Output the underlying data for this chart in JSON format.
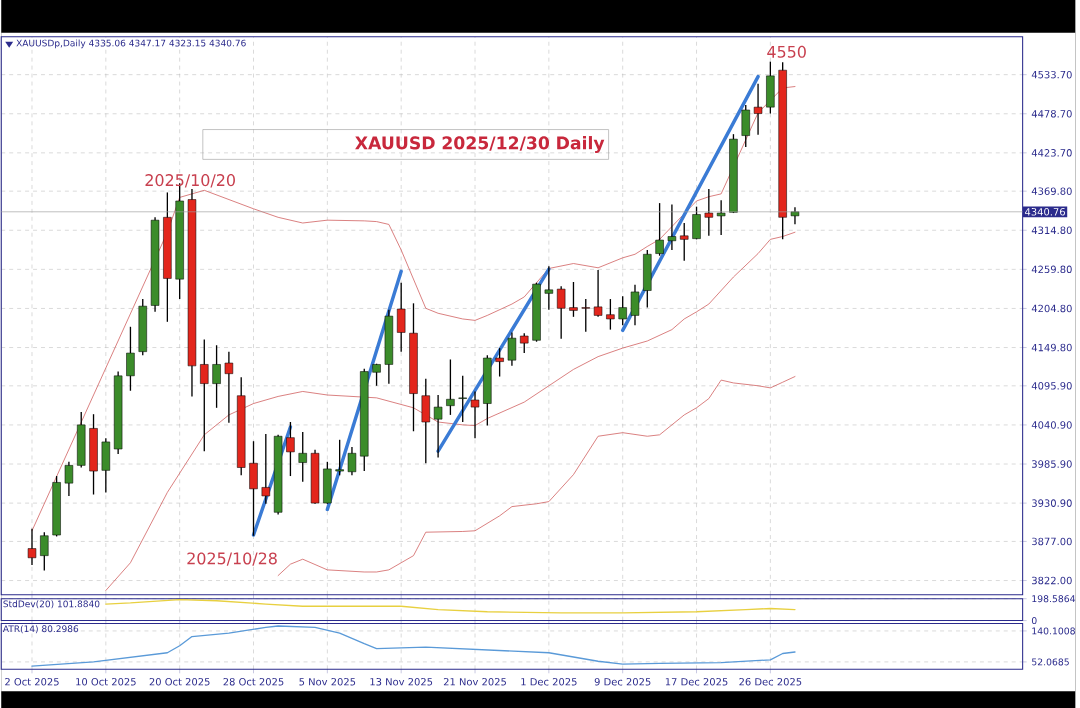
{
  "chart_data": [
    {
      "type": "candlestick",
      "title": "XAUUSD 2025/12/30 Daily",
      "subtitle": "XAUUSDp,Daily 4335.06 4347.17 4323.15 4340.76",
      "categories": [
        null,
        null,
        null,
        null,
        null,
        null,
        null,
        null,
        null,
        null,
        null,
        null,
        null,
        null,
        null,
        null,
        null,
        null,
        null,
        null,
        null,
        null,
        null,
        null,
        null,
        null,
        null,
        null,
        null,
        null,
        null,
        null,
        null,
        null,
        null,
        null,
        null,
        null,
        null,
        null,
        null,
        null,
        null,
        null,
        null,
        null,
        null,
        null,
        null,
        null,
        null,
        null,
        null,
        null,
        null,
        null,
        null,
        null,
        null,
        null,
        null,
        null,
        null
      ],
      "ohlc": [
        [
          3867,
          3895,
          3844,
          3854
        ],
        [
          3857,
          3890,
          3836,
          3885
        ],
        [
          3886,
          3969,
          3884,
          3960
        ],
        [
          3959,
          3989,
          3941,
          3984
        ],
        [
          3984,
          4059,
          3981,
          4041
        ],
        [
          4036,
          4056,
          3943,
          3976
        ],
        [
          3977,
          4022,
          3946,
          4017
        ],
        [
          4007,
          4116,
          4000,
          4110
        ],
        [
          4110,
          4179,
          4089,
          4142
        ],
        [
          4144,
          4218,
          4139,
          4208
        ],
        [
          4209,
          4333,
          4200,
          4329
        ],
        [
          4333,
          4368,
          4186,
          4247
        ],
        [
          4246,
          4381,
          4218,
          4356
        ],
        [
          4358,
          4373,
          4081,
          4124
        ],
        [
          4126,
          4161,
          4004,
          4099
        ],
        [
          4099,
          4153,
          4065,
          4126
        ],
        [
          4128,
          4144,
          4044,
          4113
        ],
        [
          4082,
          4108,
          3970,
          3981
        ],
        [
          3987,
          4018,
          3885,
          3951
        ],
        [
          3953,
          4028,
          3930,
          3941
        ],
        [
          3918,
          4027,
          3915,
          4025
        ],
        [
          4023,
          4045,
          3969,
          4003
        ],
        [
          3988,
          4031,
          3961,
          4001
        ],
        [
          4001,
          4006,
          3930,
          3931
        ],
        [
          3931,
          3989,
          3930,
          3979
        ],
        [
          3976,
          4020,
          3970,
          3978
        ],
        [
          3975,
          4010,
          3970,
          4001
        ],
        [
          3997,
          4120,
          3976,
          4116
        ],
        [
          4115,
          4127,
          4096,
          4126
        ],
        [
          4126,
          4203,
          4099,
          4194
        ],
        [
          4204,
          4241,
          4144,
          4171
        ],
        [
          4170,
          4212,
          4032,
          4085
        ],
        [
          4082,
          4106,
          3987,
          4045
        ],
        [
          4049,
          4083,
          3995,
          4066
        ],
        [
          4068,
          4133,
          4055,
          4077
        ],
        [
          4078,
          4110,
          4045,
          4079
        ],
        [
          4076,
          4088,
          4022,
          4066
        ],
        [
          4071,
          4139,
          4040,
          4135
        ],
        [
          4135,
          4149,
          4109,
          4130
        ],
        [
          4132,
          4171,
          4124,
          4163
        ],
        [
          4166,
          4170,
          4142,
          4156
        ],
        [
          4160,
          4241,
          4158,
          4239
        ],
        [
          4226,
          4264,
          4203,
          4231
        ],
        [
          4232,
          4236,
          4162,
          4205
        ],
        [
          4206,
          4242,
          4193,
          4202
        ],
        [
          4206,
          4218,
          4172,
          4205
        ],
        [
          4207,
          4259,
          4193,
          4195
        ],
        [
          4196,
          4218,
          4175,
          4190
        ],
        [
          4190,
          4222,
          4181,
          4206
        ],
        [
          4195,
          4238,
          4181,
          4228
        ],
        [
          4230,
          4287,
          4206,
          4281
        ],
        [
          4282,
          4353,
          4279,
          4301
        ],
        [
          4300,
          4351,
          4287,
          4306
        ],
        [
          4307,
          4325,
          4272,
          4302
        ],
        [
          4303,
          4348,
          4302,
          4337
        ],
        [
          4339,
          4373,
          4307,
          4333
        ],
        [
          4335,
          4357,
          4308,
          4339
        ],
        [
          4340,
          4450,
          4339,
          4443
        ],
        [
          4448,
          4491,
          4432,
          4484
        ],
        [
          4488,
          4521,
          4449,
          4479
        ],
        [
          4488,
          4552,
          4479,
          4532
        ],
        [
          4540,
          4551,
          4302,
          4333
        ],
        [
          4335.06,
          4347.17,
          4323.15,
          4340.76
        ]
      ],
      "colors": [
        "#e3261c",
        "#3b8c2a",
        "#3b8c2a",
        "#3b8c2a",
        "#3b8c2a",
        "#e3261c",
        "#3b8c2a",
        "#3b8c2a",
        "#3b8c2a",
        "#3b8c2a",
        "#3b8c2a",
        "#e3261c",
        "#3b8c2a",
        "#e3261c",
        "#e3261c",
        "#3b8c2a",
        "#e3261c",
        "#e3261c",
        "#e3261c",
        "#e3261c",
        "#3b8c2a",
        "#e3261c",
        "#3b8c2a",
        "#e3261c",
        "#3b8c2a",
        "#3b8c2a",
        "#3b8c2a",
        "#3b8c2a",
        "#3b8c2a",
        "#3b8c2a",
        "#e3261c",
        "#e3261c",
        "#e3261c",
        "#3b8c2a",
        "#3b8c2a",
        "#3b8c2a",
        "#e3261c",
        "#3b8c2a",
        "#e3261c",
        "#3b8c2a",
        "#e3261c",
        "#3b8c2a",
        "#3b8c2a",
        "#e3261c",
        "#e3261c",
        "#e3261c",
        "#e3261c",
        "#e3261c",
        "#3b8c2a",
        "#3b8c2a",
        "#3b8c2a",
        "#3b8c2a",
        "#3b8c2a",
        "#e3261c",
        "#3b8c2a",
        "#e3261c",
        "#3b8c2a",
        "#3b8c2a",
        "#3b8c2a",
        "#e3261c",
        "#3b8c2a",
        "#e3261c",
        "#3b8c2a"
      ],
      "ylim": [
        3802,
        4587
      ],
      "yticks": [
        {
          "value": 3822,
          "label": "3822.00"
        },
        {
          "value": 3877,
          "label": "3877.00"
        },
        {
          "value": 3930.9,
          "label": "3930.90"
        },
        {
          "value": 3985.9,
          "label": "3985.90"
        },
        {
          "value": 4040.9,
          "label": "4040.90"
        },
        {
          "value": 4095.9,
          "label": "4095.90"
        },
        {
          "value": 4149.8,
          "label": "4149.80"
        },
        {
          "value": 4204.8,
          "label": "4204.80"
        },
        {
          "value": 4259.8,
          "label": "4259.80"
        },
        {
          "value": 4314.8,
          "label": "4314.80"
        },
        {
          "value": 4369.8,
          "label": "4369.80"
        },
        {
          "value": 4423.7,
          "label": "4423.70"
        },
        {
          "value": 4478.7,
          "label": "4478.70"
        },
        {
          "value": 4533.7,
          "label": "4533.70"
        }
      ],
      "grid": true,
      "tick_labels": "y",
      "series": [
        {
          "type": "line",
          "color": "#d06060",
          "values": [
            3892,
            null,
            null,
            null,
            null,
            null,
            null,
            null,
            null,
            null,
            null,
            4312,
            4361,
            null,
            4371,
            null,
            4358,
            null,
            4345,
            null,
            4333,
            null,
            4325,
            null,
            4329,
            null,
            null,
            4328,
            4327,
            4323,
            4287,
            4246,
            4205,
            4198,
            null,
            4190,
            4188,
            4195,
            null,
            4211,
            4221,
            4241,
            4261,
            null,
            4268,
            null,
            4262,
            null,
            4276,
            4281,
            4292,
            4302,
            null,
            null,
            4356,
            4362,
            4366,
            null,
            null,
            4480,
            null,
            4515,
            4517
          ]
        },
        {
          "type": "line",
          "color": "#d06060",
          "values": [
            null,
            null,
            null,
            null,
            null,
            null,
            3808,
            null,
            3847,
            null,
            null,
            3946,
            null,
            null,
            4027,
            null,
            4055,
            null,
            4071,
            null,
            4081,
            null,
            4088,
            null,
            4083,
            null,
            null,
            null,
            4079,
            null,
            null,
            4065,
            null,
            4045,
            null,
            4041,
            4040,
            4050,
            null,
            null,
            4073,
            null,
            4096,
            null,
            4119,
            null,
            4137,
            null,
            4149,
            null,
            4159,
            null,
            4175,
            4190,
            4200,
            4211,
            null,
            4249,
            null,
            4282,
            4302,
            4306,
            4312
          ]
        },
        {
          "type": "line",
          "color": "#d06060",
          "values": [
            null,
            null,
            null,
            null,
            null,
            null,
            null,
            null,
            null,
            null,
            null,
            null,
            null,
            null,
            null,
            null,
            null,
            null,
            null,
            null,
            3829,
            3845,
            3852,
            null,
            3837,
            null,
            null,
            3834,
            3834,
            3837,
            3847,
            3857,
            3890,
            null,
            null,
            3891,
            3892,
            null,
            3913,
            3926,
            null,
            3930,
            3933,
            null,
            3971,
            null,
            4025,
            null,
            4030,
            null,
            4025,
            4027,
            null,
            4055,
            4065,
            4078,
            4104,
            4100,
            null,
            4096,
            4093,
            4101,
            4109
          ]
        },
        {
          "type": "line",
          "color": "#3a7bd5",
          "values": [
            null,
            null,
            null,
            null,
            null,
            null,
            null,
            null,
            null,
            null,
            null,
            null,
            null,
            null,
            null,
            null,
            null,
            null,
            3886,
            null,
            null,
            4038,
            null,
            null,
            null,
            null,
            null,
            null,
            null,
            null,
            null,
            null,
            null,
            null,
            null,
            null,
            null,
            null,
            null,
            null,
            null,
            null,
            null,
            null,
            null,
            null,
            null,
            null,
            null,
            null,
            null,
            null,
            null,
            null,
            null,
            null,
            null,
            null,
            null,
            null,
            null,
            null,
            null
          ]
        },
        {
          "type": "line",
          "color": "#3a7bd5",
          "values": [
            null,
            null,
            null,
            null,
            null,
            null,
            null,
            null,
            null,
            null,
            null,
            null,
            null,
            null,
            null,
            null,
            null,
            null,
            null,
            null,
            null,
            null,
            null,
            null,
            3922,
            null,
            null,
            null,
            null,
            null,
            4257,
            null,
            null,
            null,
            null,
            null,
            null,
            null,
            null,
            null,
            null,
            null,
            null,
            null,
            null,
            null,
            null,
            null,
            null,
            null,
            null,
            null,
            null,
            null,
            null,
            null,
            null,
            null,
            null,
            null,
            null,
            null,
            null
          ]
        },
        {
          "type": "line",
          "color": "#3a7bd5",
          "values": [
            null,
            null,
            null,
            null,
            null,
            null,
            null,
            null,
            null,
            null,
            null,
            null,
            null,
            null,
            null,
            null,
            null,
            null,
            null,
            null,
            null,
            null,
            null,
            null,
            null,
            null,
            null,
            null,
            null,
            null,
            null,
            null,
            null,
            4004,
            null,
            null,
            null,
            null,
            null,
            null,
            null,
            null,
            4260,
            null,
            null,
            null,
            null,
            null,
            null,
            null,
            null,
            null,
            null,
            null,
            null,
            null,
            null,
            null,
            null,
            null,
            null,
            null,
            null
          ]
        },
        {
          "type": "line",
          "color": "#3a7bd5",
          "values": [
            null,
            null,
            null,
            null,
            null,
            null,
            null,
            null,
            null,
            null,
            null,
            null,
            null,
            null,
            null,
            null,
            null,
            null,
            null,
            null,
            null,
            null,
            null,
            null,
            null,
            null,
            null,
            null,
            null,
            null,
            null,
            null,
            null,
            null,
            null,
            null,
            null,
            null,
            null,
            null,
            null,
            null,
            null,
            null,
            null,
            null,
            null,
            null,
            4174,
            null,
            null,
            null,
            null,
            null,
            null,
            null,
            null,
            null,
            null,
            4531,
            null,
            null,
            null
          ]
        }
      ],
      "ref_lines": [
        {
          "axis": "y",
          "value": 4340.76,
          "label": "4340.76",
          "color": "#a0a0a0"
        }
      ],
      "annotations": [
        "2025/10/20",
        "2025/10/28",
        "4550"
      ]
    },
    {
      "type": "line",
      "title": "StdDev(20) 101.8840",
      "categories": [
        null,
        null,
        null,
        null,
        null,
        null,
        null,
        null,
        null,
        null,
        null,
        null,
        null,
        null,
        null,
        null,
        null,
        null,
        null,
        null,
        null,
        null,
        null,
        null,
        null,
        null,
        null,
        null,
        null,
        null,
        null,
        null,
        null,
        null,
        null,
        null,
        null,
        null,
        null,
        null,
        null,
        null,
        null,
        null,
        null,
        null,
        null,
        null,
        null,
        null,
        null,
        null,
        null,
        null,
        null,
        null,
        null,
        null,
        null,
        null,
        null,
        null,
        null,
        null,
        null,
        null,
        null,
        null,
        null,
        null,
        null,
        null,
        null,
        null,
        null,
        null,
        null,
        null,
        null,
        null,
        null,
        null,
        null
      ],
      "series": [
        {
          "color": "#e8d040",
          "values": [
            null,
            null,
            null,
            null,
            null,
            null,
            null,
            null,
            150,
            null,
            160,
            null,
            null,
            null,
            190,
            null,
            null,
            180,
            null,
            null,
            null,
            150,
            null,
            null,
            130,
            null,
            null,
            null,
            null,
            130,
            null,
            null,
            130,
            null,
            null,
            100,
            null,
            null,
            null,
            80,
            null,
            null,
            null,
            null,
            null,
            70,
            null,
            null,
            null,
            null,
            70,
            null,
            null,
            null,
            null,
            null,
            80,
            null,
            null,
            null,
            100,
            null,
            110,
            null,
            100,
            null,
            null,
            null,
            null,
            null,
            null,
            null,
            null,
            null,
            null,
            null,
            null,
            null,
            null,
            null,
            null,
            null,
            null
          ]
        }
      ],
      "ylim": [
        0,
        198.5864
      ],
      "yticks": [
        {
          "value": 0,
          "label": "0"
        },
        {
          "value": 198.5864,
          "label": "198.5864"
        }
      ],
      "grid": true,
      "tick_labels": "y"
    },
    {
      "type": "line",
      "title": "ATR(14) 80.2986",
      "categories": [
        null,
        null,
        "2 Oct 2025",
        null,
        null,
        null,
        null,
        null,
        "10 Oct 2025",
        null,
        null,
        null,
        null,
        null,
        "20 Oct 2025",
        null,
        null,
        null,
        null,
        null,
        "28 Oct 2025",
        null,
        null,
        null,
        null,
        null,
        "5 Nov 2025",
        null,
        null,
        null,
        null,
        null,
        "13 Nov 2025",
        null,
        null,
        null,
        null,
        null,
        "21 Nov 2025",
        null,
        null,
        null,
        null,
        null,
        "1 Dec 2025",
        null,
        null,
        null,
        null,
        null,
        "9 Dec 2025",
        null,
        null,
        null,
        null,
        null,
        "17 Dec 2025",
        null,
        null,
        null,
        null,
        null,
        "26 Dec 2025",
        null,
        null,
        null,
        null,
        null,
        null,
        null,
        null,
        null,
        null,
        null,
        null,
        null,
        null,
        null,
        null,
        null,
        null,
        null,
        null
      ],
      "series": [
        {
          "color": "#5a9ad8",
          "values": [
            null,
            null,
            40,
            null,
            null,
            null,
            null,
            52,
            null,
            null,
            null,
            null,
            null,
            78,
            98,
            124,
            null,
            null,
            134,
            null,
            null,
            150,
            154,
            null,
            null,
            150,
            null,
            134,
            null,
            104,
            90,
            null,
            null,
            null,
            94,
            null,
            null,
            null,
            null,
            86,
            null,
            null,
            null,
            null,
            78,
            null,
            null,
            null,
            54,
            null,
            46,
            null,
            null,
            48,
            null,
            null,
            null,
            null,
            50,
            null,
            null,
            null,
            58,
            76,
            80.2986,
            null,
            null,
            null,
            null,
            null,
            null,
            null,
            null,
            null,
            null,
            null,
            null,
            null,
            null,
            null,
            null,
            null,
            null
          ]
        }
      ],
      "ylim": [
        31,
        161
      ],
      "yticks": [
        {
          "value": 52.0685,
          "label": "52.0685"
        },
        {
          "value": 140.1008,
          "label": "140.1008"
        }
      ],
      "grid": true
    }
  ]
}
